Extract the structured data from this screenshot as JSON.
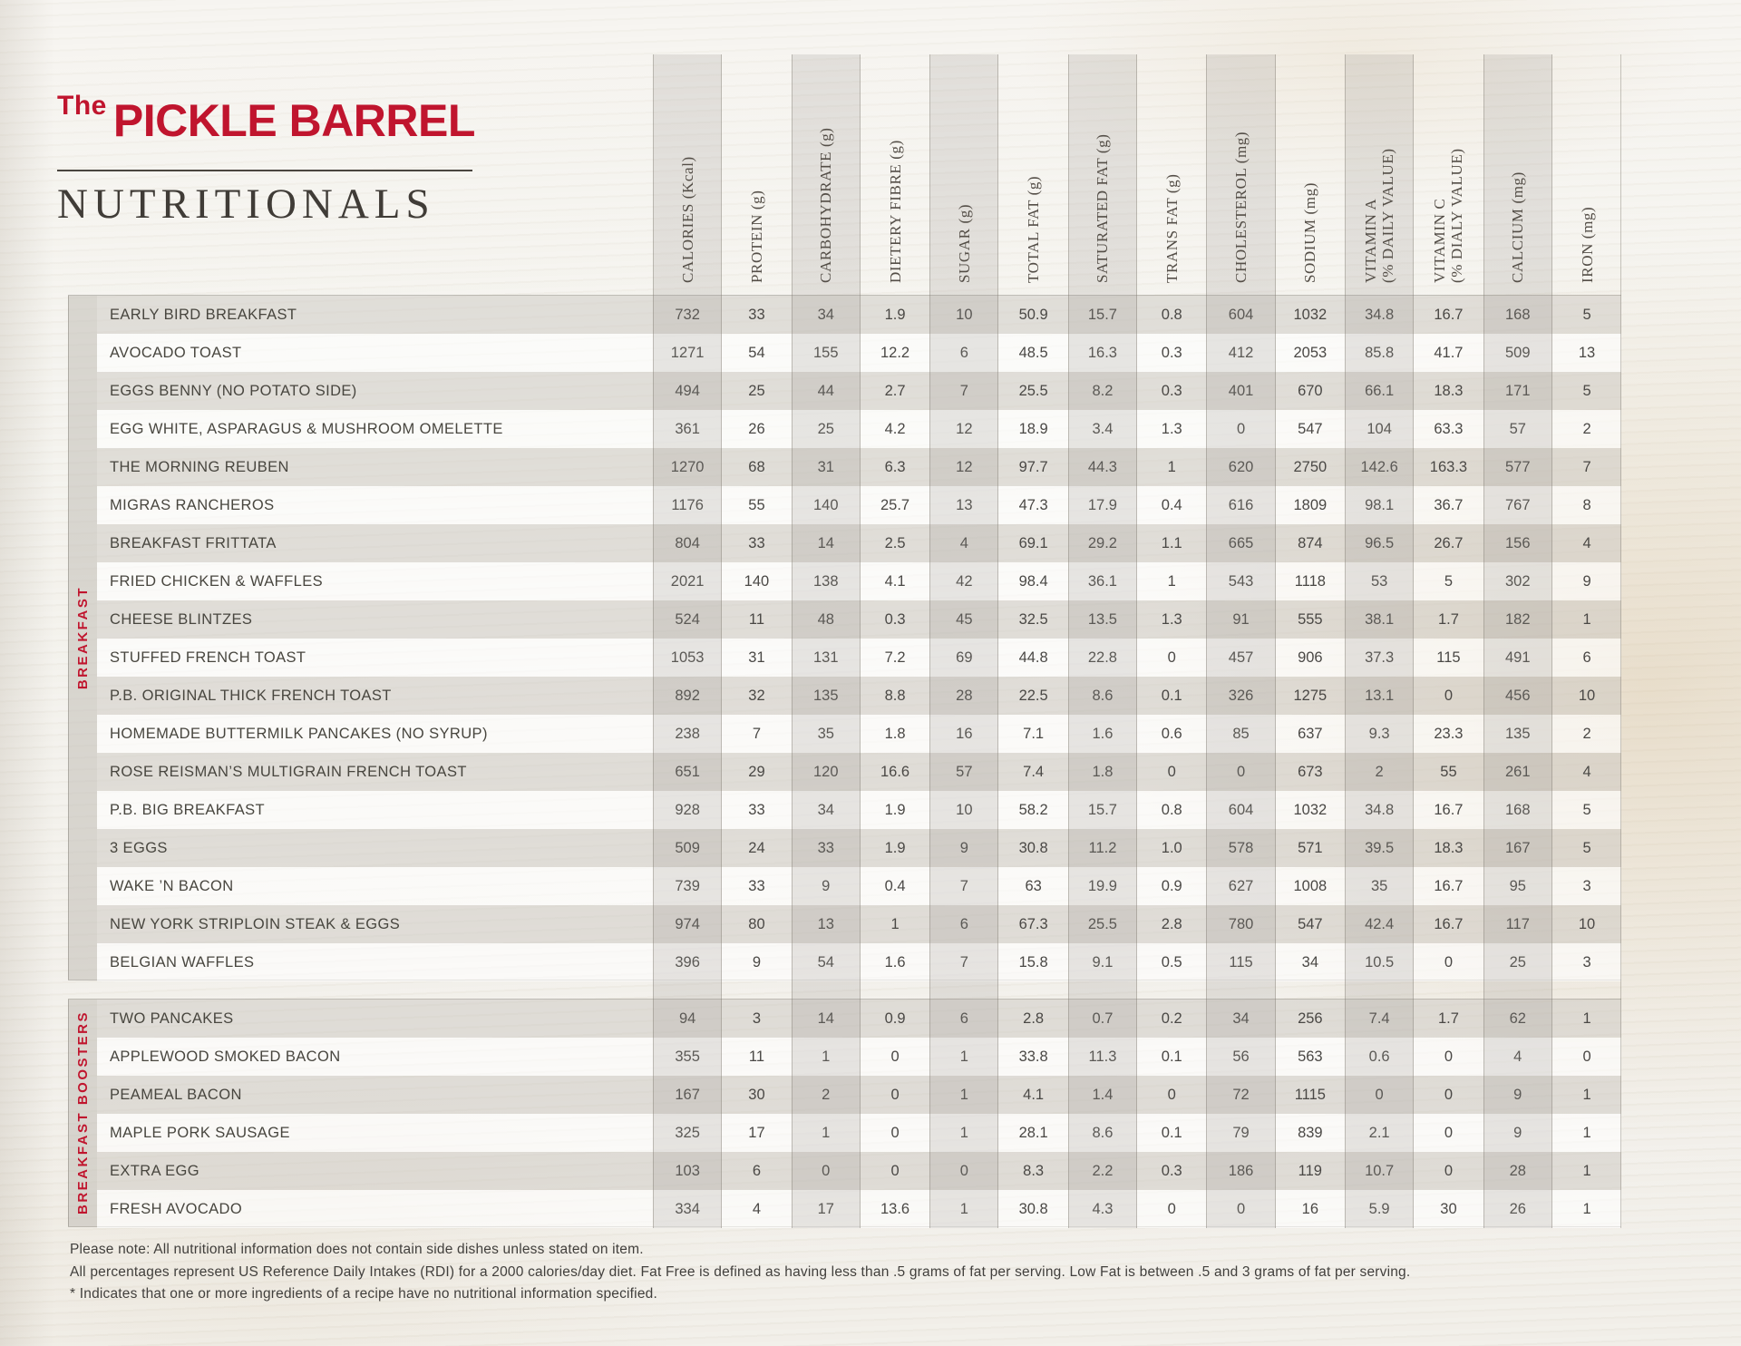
{
  "brand": {
    "prefix": "The",
    "name": "PICKLE BARREL",
    "subtitle": "NUTRITIONALS",
    "red": "#c0152e"
  },
  "table": {
    "columns": [
      {
        "lines": [
          "CALORIES (Kcal)"
        ]
      },
      {
        "lines": [
          "PROTEIN (g)"
        ]
      },
      {
        "lines": [
          "CARBOHYDRATE (g)"
        ]
      },
      {
        "lines": [
          "DIETERY FIBRE (g)"
        ]
      },
      {
        "lines": [
          "SUGAR (g)"
        ]
      },
      {
        "lines": [
          "TOTAL FAT (g)"
        ]
      },
      {
        "lines": [
          "SATURATED FAT (g)"
        ]
      },
      {
        "lines": [
          "TRANS FAT (g)"
        ]
      },
      {
        "lines": [
          "CHOLESTEROL (mg)"
        ]
      },
      {
        "lines": [
          "SODIUM (mg)"
        ]
      },
      {
        "lines": [
          "VITAMIN A",
          "(% DAILY VALUE)"
        ]
      },
      {
        "lines": [
          "VITAMIN C",
          "(% DIALY VALUE)"
        ]
      },
      {
        "lines": [
          "CALCIUM (mg)"
        ]
      },
      {
        "lines": [
          "IRON (mg)"
        ]
      }
    ],
    "sections": [
      {
        "label": "BREAKFAST",
        "rows": [
          {
            "name": "EARLY BIRD BREAKFAST",
            "values": [
              "732",
              "33",
              "34",
              "1.9",
              "10",
              "50.9",
              "15.7",
              "0.8",
              "604",
              "1032",
              "34.8",
              "16.7",
              "168",
              "5"
            ]
          },
          {
            "name": "AVOCADO TOAST",
            "values": [
              "1271",
              "54",
              "155",
              "12.2",
              "6",
              "48.5",
              "16.3",
              "0.3",
              "412",
              "2053",
              "85.8",
              "41.7",
              "509",
              "13"
            ]
          },
          {
            "name": "EGGS BENNY (NO POTATO SIDE)",
            "values": [
              "494",
              "25",
              "44",
              "2.7",
              "7",
              "25.5",
              "8.2",
              "0.3",
              "401",
              "670",
              "66.1",
              "18.3",
              "171",
              "5"
            ]
          },
          {
            "name": "EGG WHITE, ASPARAGUS & MUSHROOM OMELETTE",
            "values": [
              "361",
              "26",
              "25",
              "4.2",
              "12",
              "18.9",
              "3.4",
              "1.3",
              "0",
              "547",
              "104",
              "63.3",
              "57",
              "2"
            ]
          },
          {
            "name": "THE MORNING REUBEN",
            "values": [
              "1270",
              "68",
              "31",
              "6.3",
              "12",
              "97.7",
              "44.3",
              "1",
              "620",
              "2750",
              "142.6",
              "163.3",
              "577",
              "7"
            ]
          },
          {
            "name": "MIGRAS RANCHEROS",
            "values": [
              "1176",
              "55",
              "140",
              "25.7",
              "13",
              "47.3",
              "17.9",
              "0.4",
              "616",
              "1809",
              "98.1",
              "36.7",
              "767",
              "8"
            ]
          },
          {
            "name": "BREAKFAST FRITTATA",
            "values": [
              "804",
              "33",
              "14",
              "2.5",
              "4",
              "69.1",
              "29.2",
              "1.1",
              "665",
              "874",
              "96.5",
              "26.7",
              "156",
              "4"
            ]
          },
          {
            "name": "FRIED CHICKEN & WAFFLES",
            "values": [
              "2021",
              "140",
              "138",
              "4.1",
              "42",
              "98.4",
              "36.1",
              "1",
              "543",
              "1118",
              "53",
              "5",
              "302",
              "9"
            ]
          },
          {
            "name": "CHEESE BLINTZES",
            "values": [
              "524",
              "11",
              "48",
              "0.3",
              "45",
              "32.5",
              "13.5",
              "1.3",
              "91",
              "555",
              "38.1",
              "1.7",
              "182",
              "1"
            ]
          },
          {
            "name": "STUFFED FRENCH TOAST",
            "values": [
              "1053",
              "31",
              "131",
              "7.2",
              "69",
              "44.8",
              "22.8",
              "0",
              "457",
              "906",
              "37.3",
              "115",
              "491",
              "6"
            ]
          },
          {
            "name": "P.B. ORIGINAL THICK FRENCH TOAST",
            "values": [
              "892",
              "32",
              "135",
              "8.8",
              "28",
              "22.5",
              "8.6",
              "0.1",
              "326",
              "1275",
              "13.1",
              "0",
              "456",
              "10"
            ]
          },
          {
            "name": "HOMEMADE BUTTERMILK PANCAKES (NO SYRUP)",
            "values": [
              "238",
              "7",
              "35",
              "1.8",
              "16",
              "7.1",
              "1.6",
              "0.6",
              "85",
              "637",
              "9.3",
              "23.3",
              "135",
              "2"
            ]
          },
          {
            "name": "ROSE REISMAN’S MULTIGRAIN FRENCH TOAST",
            "values": [
              "651",
              "29",
              "120",
              "16.6",
              "57",
              "7.4",
              "1.8",
              "0",
              "0",
              "673",
              "2",
              "55",
              "261",
              "4"
            ]
          },
          {
            "name": "P.B. BIG BREAKFAST",
            "values": [
              "928",
              "33",
              "34",
              "1.9",
              "10",
              "58.2",
              "15.7",
              "0.8",
              "604",
              "1032",
              "34.8",
              "16.7",
              "168",
              "5"
            ]
          },
          {
            "name": "3 EGGS",
            "values": [
              "509",
              "24",
              "33",
              "1.9",
              "9",
              "30.8",
              "11.2",
              "1.0",
              "578",
              "571",
              "39.5",
              "18.3",
              "167",
              "5"
            ]
          },
          {
            "name": "WAKE ’N BACON",
            "values": [
              "739",
              "33",
              "9",
              "0.4",
              "7",
              "63",
              "19.9",
              "0.9",
              "627",
              "1008",
              "35",
              "16.7",
              "95",
              "3"
            ]
          },
          {
            "name": "NEW YORK STRIPLOIN STEAK & EGGS",
            "values": [
              "974",
              "80",
              "13",
              "1",
              "6",
              "67.3",
              "25.5",
              "2.8",
              "780",
              "547",
              "42.4",
              "16.7",
              "117",
              "10"
            ]
          },
          {
            "name": "BELGIAN WAFFLES",
            "values": [
              "396",
              "9",
              "54",
              "1.6",
              "7",
              "15.8",
              "9.1",
              "0.5",
              "115",
              "34",
              "10.5",
              "0",
              "25",
              "3"
            ]
          }
        ]
      },
      {
        "label": "BREAKFAST BOOSTERS",
        "rows": [
          {
            "name": "TWO PANCAKES",
            "values": [
              "94",
              "3",
              "14",
              "0.9",
              "6",
              "2.8",
              "0.7",
              "0.2",
              "34",
              "256",
              "7.4",
              "1.7",
              "62",
              "1"
            ]
          },
          {
            "name": "APPLEWOOD SMOKED BACON",
            "values": [
              "355",
              "11",
              "1",
              "0",
              "1",
              "33.8",
              "11.3",
              "0.1",
              "56",
              "563",
              "0.6",
              "0",
              "4",
              "0"
            ]
          },
          {
            "name": "PEAMEAL BACON",
            "values": [
              "167",
              "30",
              "2",
              "0",
              "1",
              "4.1",
              "1.4",
              "0",
              "72",
              "1115",
              "0",
              "0",
              "9",
              "1"
            ]
          },
          {
            "name": "MAPLE PORK SAUSAGE",
            "values": [
              "325",
              "17",
              "1",
              "0",
              "1",
              "28.1",
              "8.6",
              "0.1",
              "79",
              "839",
              "2.1",
              "0",
              "9",
              "1"
            ]
          },
          {
            "name": "EXTRA EGG",
            "values": [
              "103",
              "6",
              "0",
              "0",
              "0",
              "8.3",
              "2.2",
              "0.3",
              "186",
              "119",
              "10.7",
              "0",
              "28",
              "1"
            ]
          },
          {
            "name": "FRESH AVOCADO",
            "values": [
              "334",
              "4",
              "17",
              "13.6",
              "1",
              "30.8",
              "4.3",
              "0",
              "0",
              "16",
              "5.9",
              "30",
              "26",
              "1"
            ]
          }
        ]
      }
    ]
  },
  "footnotes": [
    "Please note: All nutritional information does not contain side dishes unless stated on item.",
    "All percentages represent US Reference Daily Intakes (RDI) for a 2000 calories/day diet. Fat Free is defined as having less than .5 grams of fat per serving. Low Fat is between .5 and 3 grams of fat per serving.",
    "* Indicates that one or more ingredients of a recipe have no nutritional information specified."
  ]
}
